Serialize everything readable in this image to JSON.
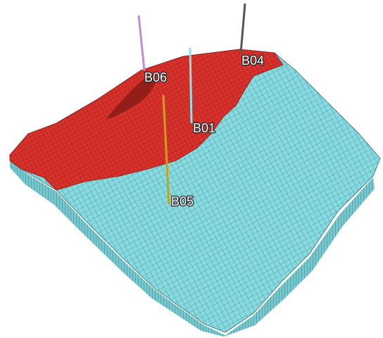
{
  "wells": [
    {
      "label": "B06"
    },
    {
      "label": "B04"
    },
    {
      "label": "B01"
    },
    {
      "label": "B05"
    }
  ]
}
